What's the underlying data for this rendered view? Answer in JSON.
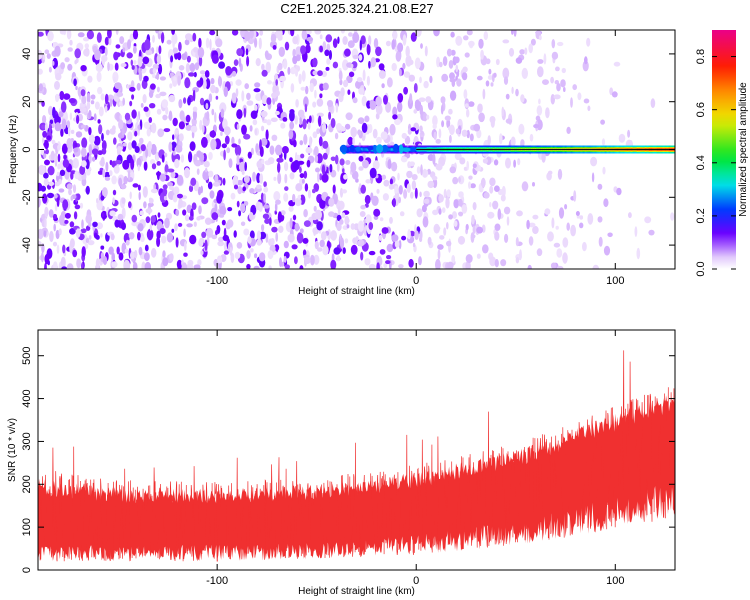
{
  "title": "C2E1.2025.324.21.08.E27",
  "chart_data": [
    {
      "type": "heatmap",
      "title": "C2E1.2025.324.21.08.E27",
      "xlabel": "Height of straight line (km)",
      "ylabel": "Frequency (Hz)",
      "xlim": [
        -190,
        130
      ],
      "ylim": [
        -50,
        50
      ],
      "xticks": [
        -100,
        0,
        100
      ],
      "yticks": [
        -40,
        -20,
        0,
        20,
        40
      ],
      "signal_band": {
        "frequency": 0,
        "x_start": -37,
        "x_end": 130,
        "peak_amplitude": 0.85
      },
      "noise_amplitude": 0.12,
      "colorbar": {
        "label": "Normalized spectral amplitude",
        "range": [
          0.0,
          0.9
        ],
        "ticks": [
          0.0,
          0.2,
          0.4,
          0.6,
          0.8
        ],
        "tick_labels": [
          "0.0",
          "0.2",
          "0.4",
          "0.6",
          "0.8"
        ]
      }
    },
    {
      "type": "line",
      "xlabel": "Height of straight line (km)",
      "ylabel": "SNR (10 * v/v)",
      "xlim": [
        -190,
        130
      ],
      "ylim": [
        0,
        560
      ],
      "xticks": [
        -100,
        0,
        100
      ],
      "yticks": [
        0,
        100,
        200,
        300,
        400,
        500
      ],
      "series": [
        {
          "name": "SNR",
          "color": "#f03030",
          "x": [
            -190,
            -150,
            -100,
            -50,
            0,
            50,
            100,
            130
          ],
          "upper": [
            230,
            205,
            200,
            210,
            240,
            290,
            380,
            430
          ],
          "mean": [
            95,
            95,
            100,
            105,
            130,
            175,
            250,
            300
          ],
          "lower": [
            20,
            20,
            20,
            25,
            35,
            55,
            95,
            120
          ]
        }
      ]
    }
  ]
}
